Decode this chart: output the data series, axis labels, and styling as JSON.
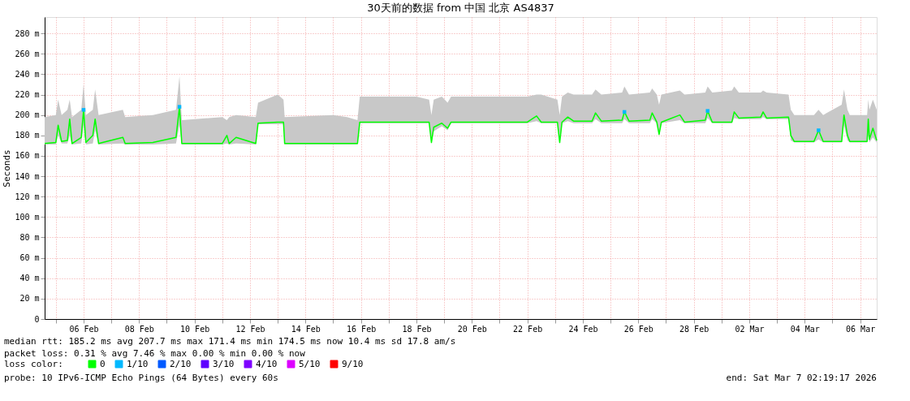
{
  "chart_data": {
    "type": "line",
    "title": "30天前的数据 from  中国 北京 AS4837",
    "ylabel": "Seconds",
    "legend_title": "loss color:",
    "legend": "bottom left",
    "grid": true,
    "xlim": [
      "2026-02-05T02:19",
      "2026-03-07T02:19"
    ],
    "xticks": [
      {
        "value": "2026-02-05T12:00",
        "label": null
      },
      {
        "value": "2026-02-06T12:00",
        "label": "06 Feb"
      },
      {
        "value": "2026-02-07T12:00",
        "label": null
      },
      {
        "value": "2026-02-08T12:00",
        "label": "08 Feb"
      },
      {
        "value": "2026-02-09T12:00",
        "label": null
      },
      {
        "value": "2026-02-10T12:00",
        "label": "10 Feb"
      },
      {
        "value": "2026-02-11T12:00",
        "label": null
      },
      {
        "value": "2026-02-12T12:00",
        "label": "12 Feb"
      },
      {
        "value": "2026-02-13T12:00",
        "label": null
      },
      {
        "value": "2026-02-14T12:00",
        "label": "14 Feb"
      },
      {
        "value": "2026-02-15T12:00",
        "label": null
      },
      {
        "value": "2026-02-16T12:00",
        "label": "16 Feb"
      },
      {
        "value": "2026-02-17T12:00",
        "label": null
      },
      {
        "value": "2026-02-18T12:00",
        "label": "18 Feb"
      },
      {
        "value": "2026-02-19T12:00",
        "label": null
      },
      {
        "value": "2026-02-20T12:00",
        "label": "20 Feb"
      },
      {
        "value": "2026-02-21T12:00",
        "label": null
      },
      {
        "value": "2026-02-22T12:00",
        "label": "22 Feb"
      },
      {
        "value": "2026-02-23T12:00",
        "label": null
      },
      {
        "value": "2026-02-24T12:00",
        "label": "24 Feb"
      },
      {
        "value": "2026-02-25T12:00",
        "label": null
      },
      {
        "value": "2026-02-26T12:00",
        "label": "26 Feb"
      },
      {
        "value": "2026-02-27T12:00",
        "label": null
      },
      {
        "value": "2026-02-28T12:00",
        "label": "28 Feb"
      },
      {
        "value": "2026-03-01T12:00",
        "label": null
      },
      {
        "value": "2026-03-02T12:00",
        "label": "02 Mar"
      },
      {
        "value": "2026-03-03T12:00",
        "label": null
      },
      {
        "value": "2026-03-04T12:00",
        "label": "04 Mar"
      },
      {
        "value": "2026-03-05T12:00",
        "label": null
      },
      {
        "value": "2026-03-06T12:00",
        "label": "06 Mar"
      }
    ],
    "ylim": [
      0,
      296
    ],
    "yticks": [
      0,
      {
        "value": 20,
        "label": "20 m"
      },
      {
        "value": 40,
        "label": "40 m"
      },
      {
        "value": 60,
        "label": "60 m"
      },
      {
        "value": 80,
        "label": "80 m"
      },
      {
        "value": 100,
        "label": "100 m"
      },
      {
        "value": 120,
        "label": "120 m"
      },
      {
        "value": 140,
        "label": "140 m"
      },
      {
        "value": 160,
        "label": "160 m"
      },
      {
        "value": 180,
        "label": "180 m"
      },
      {
        "value": 200,
        "label": "200 m"
      },
      {
        "value": 220,
        "label": "220 m"
      },
      {
        "value": 240,
        "label": "240 m"
      },
      {
        "value": 260,
        "label": "260 m"
      },
      {
        "value": 280,
        "label": "280 m"
      }
    ],
    "series": [
      {
        "name": "0",
        "color": "#00ff00",
        "marker": "none",
        "x": [
          "2026-02-05T02:19",
          "2026-02-05T12:00",
          "2026-02-05T14:00",
          "2026-02-05T17:00",
          "2026-02-05T22:00",
          "2026-02-06T00:00",
          "2026-02-06T02:00",
          "2026-02-06T10:00",
          "2026-02-06T12:00",
          "2026-02-06T14:00",
          "2026-02-06T20:00",
          "2026-02-06T22:00",
          "2026-02-07T01:00",
          "2026-02-07T22:00",
          "2026-02-08T00:00",
          "2026-02-09T00:00",
          "2026-02-09T20:00",
          "2026-02-09T23:00",
          "2026-02-10T01:00",
          "2026-02-11T12:00",
          "2026-02-11T16:00",
          "2026-02-11T18:00",
          "2026-02-12T00:00",
          "2026-02-12T17:00",
          "2026-02-12T19:00",
          "2026-02-13T12:00",
          "2026-02-13T17:00",
          "2026-02-13T18:00",
          "2026-02-15T12:00",
          "2026-02-16T00:00",
          "2026-02-16T09:00",
          "2026-02-16T11:00",
          "2026-02-18T12:00",
          "2026-02-18T23:00",
          "2026-02-19T01:00",
          "2026-02-19T03:00",
          "2026-02-19T10:00",
          "2026-02-19T15:00",
          "2026-02-19T18:00",
          "2026-02-21T00:00",
          "2026-02-22T12:00",
          "2026-02-22T20:00",
          "2026-02-23T00:00",
          "2026-02-23T14:00",
          "2026-02-23T16:00",
          "2026-02-23T18:00",
          "2026-02-23T23:00",
          "2026-02-24T04:00",
          "2026-02-24T20:00",
          "2026-02-24T23:00",
          "2026-02-25T04:00",
          "2026-02-25T22:00",
          "2026-02-26T00:00",
          "2026-02-26T04:00",
          "2026-02-26T22:00",
          "2026-02-27T00:00",
          "2026-02-27T04:00",
          "2026-02-27T06:00",
          "2026-02-27T08:00",
          "2026-02-28T00:00",
          "2026-02-28T04:00",
          "2026-02-28T22:00",
          "2026-03-01T00:00",
          "2026-03-01T04:00",
          "2026-03-01T21:00",
          "2026-03-01T23:00",
          "2026-03-02T03:00",
          "2026-03-02T22:00",
          "2026-03-03T00:00",
          "2026-03-03T03:00",
          "2026-03-03T22:00",
          "2026-03-04T00:00",
          "2026-03-04T03:00",
          "2026-03-04T20:00",
          "2026-03-05T00:00",
          "2026-03-05T04:00",
          "2026-03-05T20:00",
          "2026-03-05T22:00",
          "2026-03-06T01:00",
          "2026-03-06T03:00",
          "2026-03-06T18:00",
          "2026-03-06T19:00",
          "2026-03-06T20:00",
          "2026-03-06T23:00",
          "2026-03-07T02:19"
        ],
        "values": [
          172,
          173,
          190,
          174,
          175,
          196,
          172,
          178,
          205,
          173,
          180,
          196,
          172,
          178,
          172,
          173,
          178,
          208,
          172,
          172,
          180,
          172,
          178,
          172,
          192,
          193,
          193,
          172,
          172,
          172,
          172,
          193,
          193,
          193,
          173,
          188,
          192,
          187,
          193,
          193,
          193,
          199,
          193,
          193,
          173,
          193,
          198,
          194,
          194,
          202,
          194,
          195,
          203,
          194,
          195,
          202,
          193,
          181,
          193,
          200,
          193,
          195,
          204,
          193,
          193,
          203,
          197,
          198,
          203,
          197,
          198,
          180,
          174,
          174,
          185,
          174,
          174,
          200,
          180,
          174,
          174,
          196,
          176,
          187,
          175
        ],
        "lower": [
          171,
          171,
          180,
          172,
          172,
          180,
          171,
          172,
          190,
          171,
          172,
          185,
          171,
          172,
          171,
          171,
          172,
          190,
          171,
          171,
          172,
          171,
          172,
          171,
          191,
          191,
          191,
          171,
          171,
          171,
          171,
          192,
          192,
          192,
          172,
          184,
          189,
          185,
          192,
          192,
          192,
          194,
          192,
          192,
          172,
          192,
          194,
          192,
          192,
          196,
          192,
          192,
          196,
          192,
          192,
          196,
          192,
          180,
          192,
          195,
          192,
          192,
          197,
          192,
          192,
          197,
          196,
          196,
          198,
          196,
          196,
          175,
          173,
          173,
          176,
          173,
          173,
          190,
          175,
          173,
          173,
          180,
          173,
          178,
          173
        ],
        "upper": [
          198,
          200,
          215,
          200,
          205,
          215,
          198,
          205,
          230,
          200,
          205,
          225,
          200,
          205,
          198,
          200,
          205,
          238,
          195,
          198,
          195,
          198,
          200,
          198,
          212,
          220,
          215,
          198,
          200,
          198,
          195,
          218,
          218,
          215,
          200,
          215,
          218,
          212,
          218,
          218,
          218,
          220,
          220,
          215,
          200,
          218,
          222,
          220,
          220,
          225,
          220,
          222,
          228,
          220,
          222,
          226,
          220,
          210,
          220,
          224,
          220,
          222,
          228,
          222,
          224,
          228,
          222,
          222,
          224,
          222,
          220,
          205,
          200,
          200,
          205,
          200,
          210,
          225,
          205,
          200,
          200,
          215,
          205,
          215,
          205
        ]
      },
      {
        "name": "1/10",
        "color": "#00b8ff",
        "type": "scatter",
        "marker": "square",
        "x": [
          "2026-02-06T12:00",
          "2026-02-09T23:00",
          "2026-02-26T00:00",
          "2026-03-01T00:00",
          "2026-03-05T00:00"
        ],
        "values": [
          205,
          208,
          203,
          204,
          185
        ]
      },
      {
        "name": "2/10",
        "color": "#0059ff",
        "type": "scatter",
        "marker": "square"
      },
      {
        "name": "3/10",
        "color": "#5e00ff",
        "type": "scatter",
        "marker": "square"
      },
      {
        "name": "4/10",
        "color": "#7e00ff",
        "type": "scatter",
        "marker": "square"
      },
      {
        "name": "5/10",
        "color": "#dd00ff",
        "type": "scatter",
        "marker": "square"
      },
      {
        "name": "9/10",
        "color": "#ff0000",
        "type": "scatter",
        "marker": "square"
      }
    ],
    "annotations": [
      "median rtt:  185.2 ms avg  207.7 ms max  171.4 ms min  174.5 ms now  10.4 ms sd  17.8   am/s",
      "packet loss: 0.31 % avg  7.46 % max  0.00 % min  0.00 % now",
      "probe:       10 IPv6-ICMP Echo Pings (64 Bytes) every 60s",
      "end: Sat Mar  7 02:19:17 2026"
    ]
  }
}
